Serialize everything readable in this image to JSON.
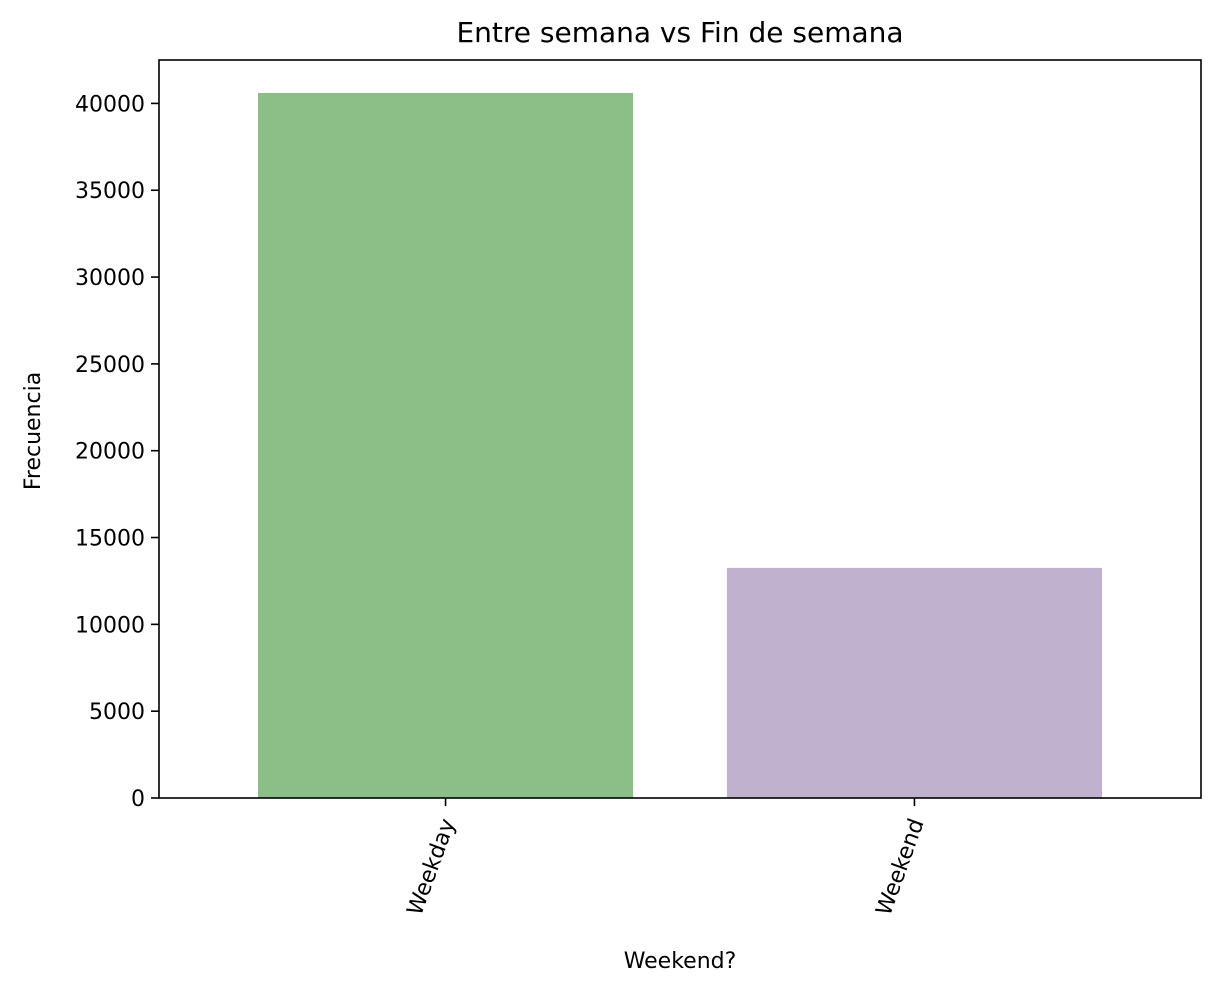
{
  "chart_data": {
    "type": "bar",
    "title": "Entre semana vs Fin de semana",
    "xlabel": "Weekend?",
    "ylabel": "Frecuencia",
    "categories": [
      "Weekday",
      "Weekend"
    ],
    "values": [
      40600,
      13250
    ],
    "colors": [
      "#8bbf87",
      "#c0b1cf"
    ],
    "ylim": [
      0,
      42500
    ],
    "yticks": [
      0,
      5000,
      10000,
      15000,
      20000,
      25000,
      30000,
      35000,
      40000
    ],
    "ytick_labels": [
      "0",
      "5000",
      "10000",
      "15000",
      "20000",
      "25000",
      "30000",
      "35000",
      "40000"
    ],
    "grid": false,
    "xtick_rotation_deg": 70
  }
}
